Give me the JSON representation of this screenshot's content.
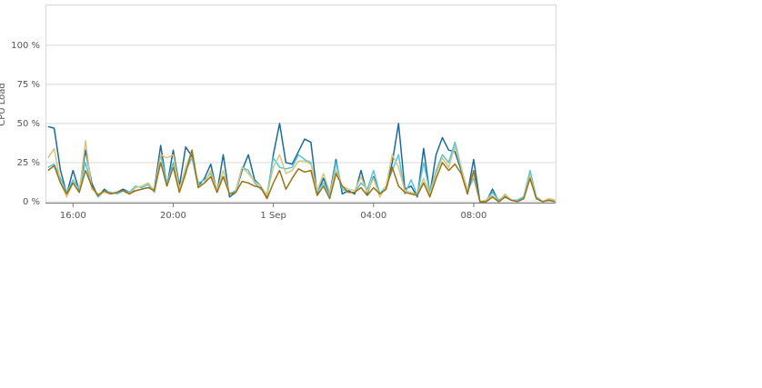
{
  "chart_data": {
    "type": "line",
    "ylabel": "CPU Load",
    "xlim": [
      14.9,
      35.27
    ],
    "xticks": [
      {
        "value": 16,
        "label": "16:00"
      },
      {
        "value": 20,
        "label": "20:00"
      },
      {
        "value": 24,
        "label": "1 Sep"
      },
      {
        "value": 28,
        "label": "04:00"
      },
      {
        "value": 32,
        "label": "08:00"
      }
    ],
    "ylim": [
      0,
      126
    ],
    "yticks": [
      {
        "value": 0,
        "label": "0 %"
      },
      {
        "value": 25,
        "label": "25 %"
      },
      {
        "value": 50,
        "label": "50 %"
      },
      {
        "value": 75,
        "label": "75 %"
      },
      {
        "value": 100,
        "label": "100 %"
      }
    ],
    "grid": true,
    "x": [
      15,
      15.25,
      15.5,
      15.75,
      16,
      16.25,
      16.5,
      16.75,
      17,
      17.25,
      17.5,
      17.75,
      18,
      18.25,
      18.5,
      18.75,
      19,
      19.25,
      19.5,
      19.75,
      20,
      20.25,
      20.5,
      20.75,
      21,
      21.25,
      21.5,
      21.75,
      22,
      22.25,
      22.5,
      22.75,
      23,
      23.25,
      23.5,
      23.75,
      24,
      24.25,
      24.5,
      24.75,
      25,
      25.25,
      25.5,
      25.75,
      26,
      26.25,
      26.5,
      26.75,
      27,
      27.25,
      27.5,
      27.75,
      28,
      28.25,
      28.5,
      28.75,
      29,
      29.25,
      29.5,
      29.75,
      30,
      30.25,
      30.5,
      30.75,
      31,
      31.25,
      31.5,
      31.75,
      32,
      32.25,
      32.5,
      32.75,
      33,
      33.25,
      33.5,
      33.75,
      34,
      34.25,
      34.5,
      34.75,
      35,
      35.25
    ],
    "series": [
      {
        "color": "#1b6a99",
        "values": [
          48,
          47,
          20,
          5,
          20,
          7,
          33,
          12,
          3,
          8,
          5,
          6,
          8,
          6,
          7,
          8,
          9,
          8,
          36,
          10,
          33,
          10,
          35,
          29,
          10,
          15,
          24,
          6,
          30,
          3,
          6,
          20,
          30,
          14,
          10,
          3,
          30,
          50,
          25,
          24,
          32,
          40,
          38,
          5,
          15,
          5,
          27,
          5,
          7,
          5,
          20,
          5,
          16,
          5,
          8,
          25,
          50,
          8,
          10,
          3,
          34,
          5,
          30,
          41,
          33,
          32,
          20,
          5,
          27,
          0,
          0,
          8,
          0,
          3,
          1,
          1,
          3,
          15,
          3,
          0,
          1,
          0
        ]
      },
      {
        "color": "#56c4dc",
        "values": [
          22,
          24,
          15,
          6,
          14,
          8,
          25,
          10,
          3,
          7,
          6,
          5,
          7,
          6,
          10,
          9,
          11,
          6,
          30,
          12,
          25,
          9,
          20,
          28,
          12,
          14,
          18,
          8,
          16,
          5,
          7,
          22,
          20,
          12,
          8,
          5,
          28,
          22,
          21,
          22,
          30,
          27,
          25,
          6,
          12,
          4,
          25,
          8,
          6,
          6,
          12,
          8,
          20,
          5,
          10,
          20,
          30,
          5,
          14,
          4,
          25,
          6,
          20,
          30,
          25,
          38,
          22,
          7,
          15,
          0,
          1,
          6,
          1,
          4,
          1,
          1,
          3,
          20,
          3,
          0,
          2,
          1
        ]
      },
      {
        "color": "#d7c67c",
        "values": [
          28,
          34,
          12,
          3,
          12,
          6,
          39,
          8,
          5,
          6,
          5,
          6,
          7,
          5,
          9,
          10,
          12,
          7,
          30,
          28,
          30,
          8,
          22,
          33,
          10,
          12,
          20,
          7,
          20,
          5,
          6,
          22,
          18,
          13,
          10,
          4,
          22,
          30,
          18,
          20,
          26,
          26,
          24,
          7,
          18,
          6,
          20,
          10,
          8,
          7,
          16,
          6,
          15,
          3,
          10,
          30,
          22,
          7,
          6,
          4,
          15,
          5,
          18,
          28,
          22,
          35,
          22,
          6,
          18,
          0,
          1,
          4,
          0,
          5,
          1,
          0,
          2,
          17,
          2,
          0,
          2,
          1
        ]
      },
      {
        "color": "#9a7317",
        "values": [
          20,
          23,
          12,
          5,
          12,
          6,
          20,
          10,
          4,
          7,
          5,
          6,
          7,
          5,
          7,
          8,
          9,
          7,
          25,
          10,
          22,
          6,
          18,
          33,
          9,
          12,
          16,
          6,
          16,
          5,
          6,
          13,
          12,
          10,
          9,
          2,
          12,
          20,
          8,
          15,
          21,
          19,
          20,
          4,
          10,
          2,
          18,
          10,
          6,
          6,
          9,
          4,
          9,
          5,
          8,
          22,
          10,
          6,
          5,
          4,
          12,
          3,
          15,
          25,
          20,
          24,
          18,
          5,
          20,
          0,
          0,
          3,
          0,
          3,
          1,
          0,
          2,
          15,
          2,
          0,
          1,
          0
        ]
      }
    ]
  }
}
